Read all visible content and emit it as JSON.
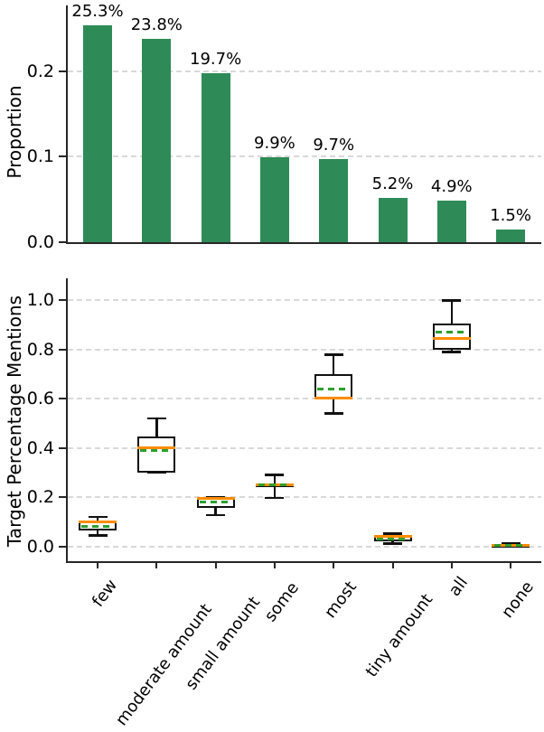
{
  "figure": {
    "background": "#ffffff",
    "bar_color": "#2e8b57",
    "median_color": "#ff8c00",
    "mean_color": "#2ca02c",
    "grid_color": "#d9d9d9",
    "spine_color": "#262626"
  },
  "chart_data": [
    {
      "type": "bar",
      "title": "",
      "xlabel": "",
      "ylabel": "Proportion",
      "categories": [
        "few",
        "moderate amount",
        "small amount",
        "some",
        "most",
        "tiny amount",
        "all",
        "none"
      ],
      "values": [
        0.253,
        0.238,
        0.197,
        0.099,
        0.097,
        0.052,
        0.049,
        0.015
      ],
      "bar_labels": [
        "25.3%",
        "23.8%",
        "19.7%",
        "9.9%",
        "9.7%",
        "5.2%",
        "4.9%",
        "1.5%"
      ],
      "ytick_labels": [
        "0.0",
        "0.1",
        "0.2"
      ],
      "ylim": [
        0,
        0.27
      ],
      "grid": true,
      "legend": null,
      "bar_color": "#2e8b57"
    },
    {
      "type": "boxplot",
      "title": "",
      "xlabel": "",
      "ylabel": "Target Percentage Mentions",
      "categories": [
        "few",
        "moderate amount",
        "small amount",
        "some",
        "most",
        "tiny amount",
        "all",
        "none"
      ],
      "ytick_labels": [
        "0.0",
        "0.2",
        "0.4",
        "0.6",
        "0.8",
        "1.0"
      ],
      "ylim": [
        -0.06,
        1.07
      ],
      "grid": true,
      "median_color": "#ff8c00",
      "mean_color": "#2ca02c",
      "series": [
        {
          "name": "few",
          "whislo": 0.045,
          "q1": 0.065,
          "med": 0.1,
          "mean": 0.08,
          "q3": 0.105,
          "whishi": 0.121
        },
        {
          "name": "moderate amount",
          "whislo": 0.3,
          "q1": 0.3,
          "med": 0.4,
          "mean": 0.39,
          "q3": 0.448,
          "whishi": 0.52
        },
        {
          "name": "small amount",
          "whislo": 0.128,
          "q1": 0.155,
          "med": 0.197,
          "mean": 0.18,
          "q3": 0.2,
          "whishi": 0.2
        },
        {
          "name": "some",
          "whislo": 0.197,
          "q1": 0.244,
          "med": 0.25,
          "mean": 0.25,
          "q3": 0.256,
          "whishi": 0.291
        },
        {
          "name": "most",
          "whislo": 0.54,
          "q1": 0.6,
          "med": 0.603,
          "mean": 0.64,
          "q3": 0.7,
          "whishi": 0.779
        },
        {
          "name": "tiny amount",
          "whislo": 0.012,
          "q1": 0.02,
          "med": 0.04,
          "mean": 0.031,
          "q3": 0.045,
          "whishi": 0.053
        },
        {
          "name": "all",
          "whislo": 0.79,
          "q1": 0.8,
          "med": 0.847,
          "mean": 0.87,
          "q3": 0.905,
          "whishi": 1.0
        },
        {
          "name": "none",
          "whislo": 0.002,
          "q1": 0.004,
          "med": 0.006,
          "mean": 0.006,
          "q3": 0.009,
          "whishi": 0.011
        }
      ]
    }
  ]
}
